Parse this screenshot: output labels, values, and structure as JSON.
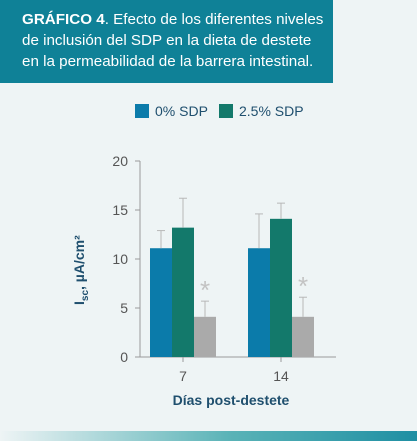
{
  "header": {
    "figure_label": "GRÁFICO 4",
    "caption_lines": [
      ". Efecto de los diferentes niveles",
      "de inclusión del SDP en la dieta de destete",
      "en la permeabilidad de la barrera intestinal."
    ]
  },
  "colors": {
    "header_bg": "#0f8197",
    "series_0": "#0b7baa",
    "series_2_5": "#13796b",
    "series_unlabeled": "#aaaaaa",
    "error_bar": "#b8b8b8",
    "significance": "#c3c3c3"
  },
  "chart_data": {
    "type": "bar",
    "categories": [
      "7",
      "14"
    ],
    "series": [
      {
        "name": "0% SDP",
        "values": [
          11.1,
          11.1
        ],
        "errors": [
          1.8,
          3.5
        ]
      },
      {
        "name": "2.5% SDP",
        "values": [
          13.2,
          14.1
        ],
        "errors": [
          3.0,
          1.6
        ]
      },
      {
        "values": [
          4.1,
          4.1
        ],
        "errors": [
          1.6,
          2.0
        ]
      }
    ],
    "significance": [
      {
        "category": "7",
        "label": "*"
      },
      {
        "category": "14",
        "label": "*"
      }
    ],
    "ylabel_main": "I",
    "ylabel_sub": "sc",
    "ylabel_rest": ", µA/cm²",
    "xlabel": "Días post-destete",
    "ylim": [
      0,
      20
    ],
    "yticks": [
      0,
      5,
      10,
      15,
      20
    ],
    "legend_position": "top",
    "grid": false
  }
}
